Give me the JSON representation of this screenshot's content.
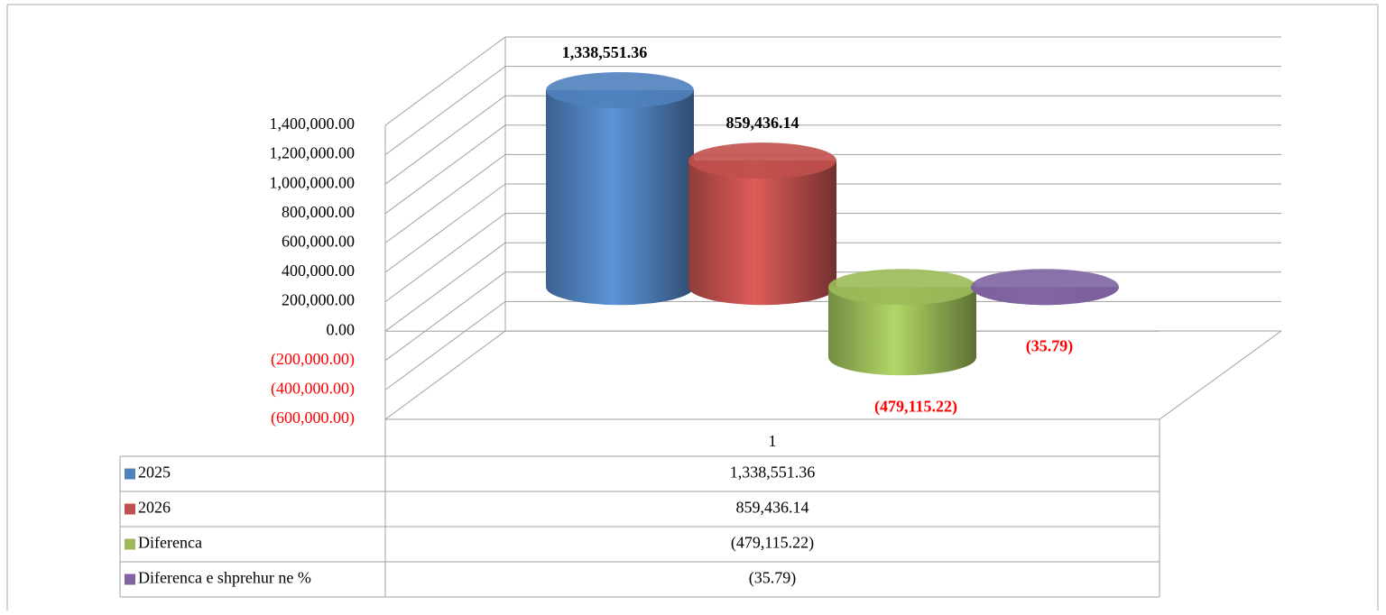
{
  "chart_data": {
    "type": "bar3d",
    "categories": [
      "1"
    ],
    "series": [
      {
        "name": "2025",
        "color": "#4f81bd",
        "values": [
          1338551.36
        ],
        "value_labels": [
          "1,338,551.36"
        ]
      },
      {
        "name": "2026",
        "color": "#c0504d",
        "values": [
          859436.14
        ],
        "value_labels": [
          "859,436.14"
        ]
      },
      {
        "name": "Diferenca",
        "color": "#9bbb59",
        "values": [
          -479115.22
        ],
        "value_labels": [
          "(479,115.22)"
        ]
      },
      {
        "name": "Diferenca e shprehur ne %",
        "color": "#8064a2",
        "values": [
          -35.79
        ],
        "value_labels": [
          "(35.79)"
        ]
      }
    ],
    "ylim": [
      -600000,
      1400000
    ],
    "yticks": [
      {
        "value": -600000,
        "label": "(600,000.00)"
      },
      {
        "value": -400000,
        "label": "(400,000.00)"
      },
      {
        "value": -200000,
        "label": "(200,000.00)"
      },
      {
        "value": 0,
        "label": "0.00"
      },
      {
        "value": 200000,
        "label": "200,000.00"
      },
      {
        "value": 400000,
        "label": "400,000.00"
      },
      {
        "value": 600000,
        "label": "600,000.00"
      },
      {
        "value": 800000,
        "label": "800,000.00"
      },
      {
        "value": 1000000,
        "label": "1,000,000.00"
      },
      {
        "value": 1200000,
        "label": "1,200,000.00"
      },
      {
        "value": 1400000,
        "label": "1,400,000.00"
      }
    ],
    "grid": true,
    "data_table": true
  }
}
